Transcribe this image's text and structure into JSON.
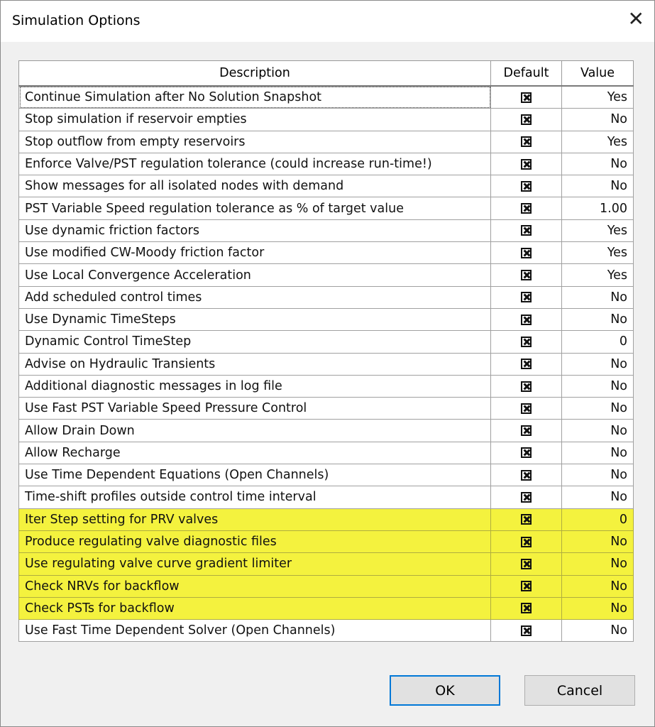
{
  "window": {
    "title": "Simulation Options",
    "close_icon": "close-icon"
  },
  "table": {
    "headers": {
      "description": "Description",
      "default": "Default",
      "value": "Value"
    },
    "rows": [
      {
        "description": "Continue Simulation after No Solution Snapshot",
        "default": true,
        "value": "Yes",
        "highlighted": false
      },
      {
        "description": "Stop simulation if reservoir empties",
        "default": true,
        "value": "No",
        "highlighted": false
      },
      {
        "description": "Stop outflow from empty reservoirs",
        "default": true,
        "value": "Yes",
        "highlighted": false
      },
      {
        "description": "Enforce Valve/PST regulation tolerance (could increase run-time!)",
        "default": true,
        "value": "No",
        "highlighted": false
      },
      {
        "description": "Show messages for all isolated nodes with demand",
        "default": true,
        "value": "No",
        "highlighted": false
      },
      {
        "description": "PST Variable Speed regulation tolerance as % of target value",
        "default": true,
        "value": "1.00",
        "highlighted": false
      },
      {
        "description": "Use dynamic friction factors",
        "default": true,
        "value": "Yes",
        "highlighted": false
      },
      {
        "description": "Use modified CW-Moody friction factor",
        "default": true,
        "value": "Yes",
        "highlighted": false
      },
      {
        "description": "Use Local Convergence Acceleration",
        "default": true,
        "value": "Yes",
        "highlighted": false
      },
      {
        "description": "Add scheduled control times",
        "default": true,
        "value": "No",
        "highlighted": false
      },
      {
        "description": "Use Dynamic TimeSteps",
        "default": true,
        "value": "No",
        "highlighted": false
      },
      {
        "description": "Dynamic Control TimeStep",
        "default": true,
        "value": "0",
        "highlighted": false
      },
      {
        "description": "Advise on Hydraulic Transients",
        "default": true,
        "value": "No",
        "highlighted": false
      },
      {
        "description": "Additional diagnostic messages in log file",
        "default": true,
        "value": "No",
        "highlighted": false
      },
      {
        "description": "Use Fast PST Variable Speed Pressure Control",
        "default": true,
        "value": "No",
        "highlighted": false
      },
      {
        "description": "Allow Drain Down",
        "default": true,
        "value": "No",
        "highlighted": false
      },
      {
        "description": "Allow Recharge",
        "default": true,
        "value": "No",
        "highlighted": false
      },
      {
        "description": "Use Time Dependent Equations (Open Channels)",
        "default": true,
        "value": "No",
        "highlighted": false
      },
      {
        "description": "Time-shift profiles outside control time interval",
        "default": true,
        "value": "No",
        "highlighted": false
      },
      {
        "description": "Iter Step setting for PRV valves",
        "default": true,
        "value": "0",
        "highlighted": true
      },
      {
        "description": "Produce regulating valve diagnostic files",
        "default": true,
        "value": "No",
        "highlighted": true
      },
      {
        "description": "Use regulating valve curve gradient limiter",
        "default": true,
        "value": "No",
        "highlighted": true
      },
      {
        "description": "Check NRVs for backflow",
        "default": true,
        "value": "No",
        "highlighted": true
      },
      {
        "description": "Check PSTs for backflow",
        "default": true,
        "value": "No",
        "highlighted": true
      },
      {
        "description": "Use Fast Time Dependent Solver (Open Channels)",
        "default": true,
        "value": "No",
        "highlighted": false
      }
    ]
  },
  "buttons": {
    "ok": "OK",
    "cancel": "Cancel"
  },
  "colors": {
    "highlight": "#f4f23e",
    "focus_border": "#0078d7"
  }
}
